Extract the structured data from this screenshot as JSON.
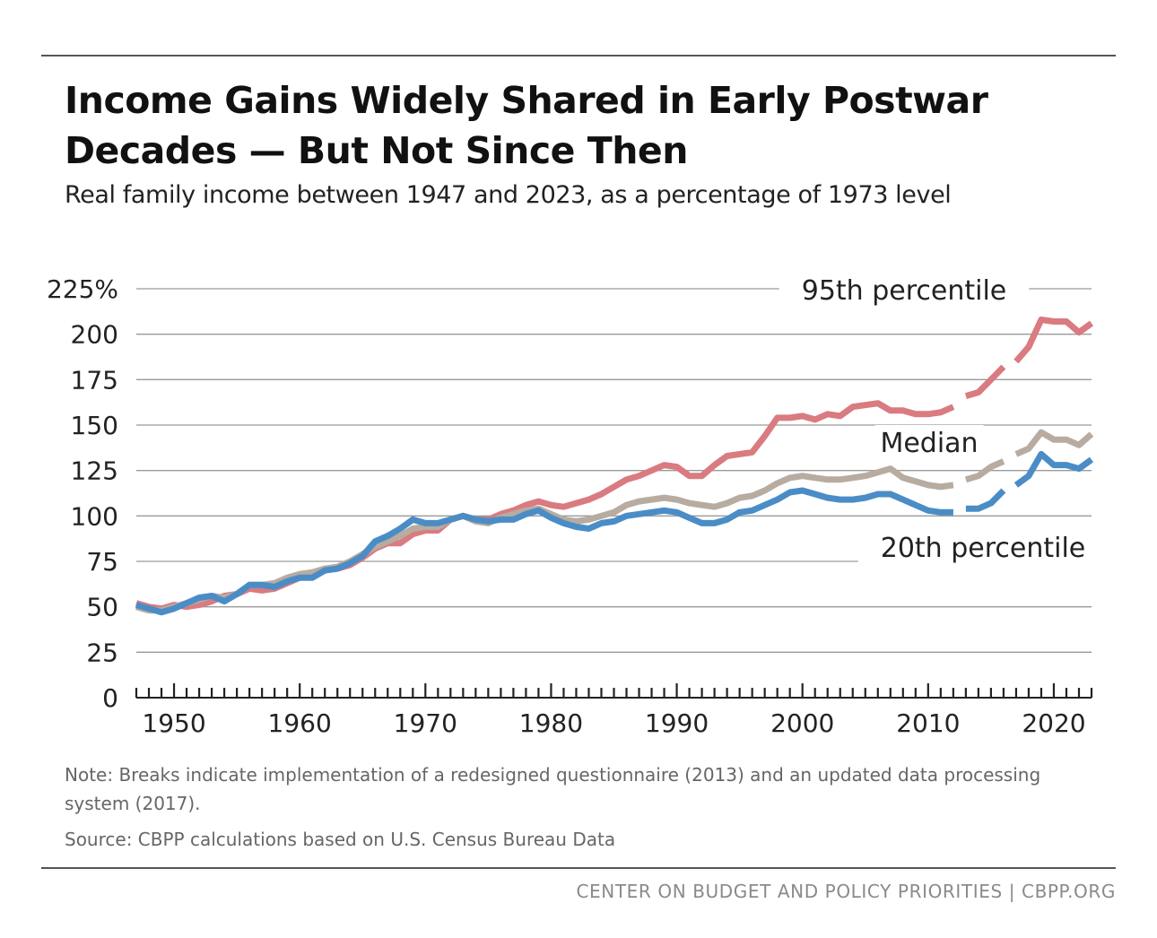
{
  "title": "Income Gains Widely Shared in Early Postwar Decades — But Not Since Then",
  "subtitle": "Real family income between 1947 and 2023, as a percentage of 1973 level",
  "note": "Note: Breaks indicate implementation of a redesigned questionnaire (2013) and an updated data processing system (2017).",
  "source": "Source: CBPP calculations based on U.S. Census Bureau Data",
  "footer": "CENTER ON BUDGET AND POLICY PRIORITIES | CBPP.ORG",
  "chart_data": {
    "type": "line",
    "title": "Income Gains Widely Shared in Early Postwar Decades — But Not Since Then",
    "subtitle": "Real family income between 1947 and 2023, as a percentage of 1973 level",
    "ylim": [
      0,
      225
    ],
    "xlim": [
      1947,
      2023
    ],
    "yticks": [
      0,
      25,
      50,
      75,
      100,
      125,
      150,
      175,
      200,
      225
    ],
    "ytick_labels": [
      "0",
      "25",
      "50",
      "75",
      "100",
      "125",
      "150",
      "175",
      "200",
      "225%"
    ],
    "xticks": [
      1950,
      1960,
      1970,
      1980,
      1990,
      2000,
      2010,
      2020
    ],
    "xtick_labels": [
      "1950",
      "1960",
      "1970",
      "1980",
      "1990",
      "2000",
      "2010",
      "2020"
    ],
    "grid": "horizontal",
    "breaks": [
      2013,
      2017
    ],
    "x": [
      1947,
      1948,
      1949,
      1950,
      1951,
      1952,
      1953,
      1954,
      1955,
      1956,
      1957,
      1958,
      1959,
      1960,
      1961,
      1962,
      1963,
      1964,
      1965,
      1966,
      1967,
      1968,
      1969,
      1970,
      1971,
      1972,
      1973,
      1974,
      1975,
      1976,
      1977,
      1978,
      1979,
      1980,
      1981,
      1982,
      1983,
      1984,
      1985,
      1986,
      1987,
      1988,
      1989,
      1990,
      1991,
      1992,
      1993,
      1994,
      1995,
      1996,
      1997,
      1998,
      1999,
      2000,
      2001,
      2002,
      2003,
      2004,
      2005,
      2006,
      2007,
      2008,
      2009,
      2010,
      2011,
      2012,
      2013,
      2014,
      2015,
      2016,
      2017,
      2018,
      2019,
      2020,
      2021,
      2022,
      2023
    ],
    "series": [
      {
        "name": "95th percentile",
        "color": "#d97b80",
        "values": [
          52,
          50,
          49,
          51,
          50,
          51,
          53,
          56,
          57,
          60,
          59,
          60,
          63,
          66,
          68,
          71,
          71,
          73,
          77,
          82,
          85,
          85,
          90,
          92,
          92,
          98,
          100,
          98,
          98,
          101,
          103,
          106,
          108,
          106,
          105,
          107,
          109,
          112,
          116,
          120,
          122,
          125,
          128,
          127,
          122,
          122,
          128,
          133,
          134,
          135,
          144,
          154,
          154,
          155,
          153,
          156,
          155,
          160,
          161,
          162,
          158,
          158,
          156,
          156,
          157,
          160,
          166,
          168,
          175,
          182,
          185,
          193,
          208,
          207,
          207,
          201,
          206
        ]
      },
      {
        "name": "Median",
        "color": "#b8aca1",
        "values": [
          50,
          48,
          48,
          50,
          52,
          54,
          56,
          55,
          57,
          62,
          62,
          63,
          66,
          68,
          69,
          71,
          72,
          75,
          79,
          83,
          86,
          89,
          93,
          94,
          94,
          98,
          100,
          97,
          96,
          99,
          101,
          103,
          104,
          101,
          98,
          97,
          98,
          100,
          102,
          106,
          108,
          109,
          110,
          109,
          107,
          106,
          105,
          107,
          110,
          111,
          114,
          118,
          121,
          122,
          121,
          120,
          120,
          121,
          122,
          124,
          126,
          121,
          119,
          117,
          116,
          117,
          120,
          122,
          127,
          130,
          134,
          137,
          146,
          142,
          142,
          139,
          145
        ]
      },
      {
        "name": "20th percentile",
        "color": "#4a8dc6",
        "values": [
          51,
          49,
          47,
          49,
          52,
          55,
          56,
          53,
          57,
          62,
          62,
          61,
          64,
          66,
          66,
          70,
          71,
          74,
          78,
          86,
          89,
          93,
          98,
          96,
          96,
          98,
          100,
          98,
          97,
          98,
          98,
          101,
          103,
          99,
          96,
          94,
          93,
          96,
          97,
          100,
          101,
          102,
          103,
          102,
          99,
          96,
          96,
          98,
          102,
          103,
          106,
          109,
          113,
          114,
          112,
          110,
          109,
          109,
          110,
          112,
          112,
          109,
          106,
          103,
          102,
          102,
          104,
          104,
          107,
          114,
          117,
          122,
          134,
          128,
          128,
          126,
          131
        ]
      }
    ]
  }
}
